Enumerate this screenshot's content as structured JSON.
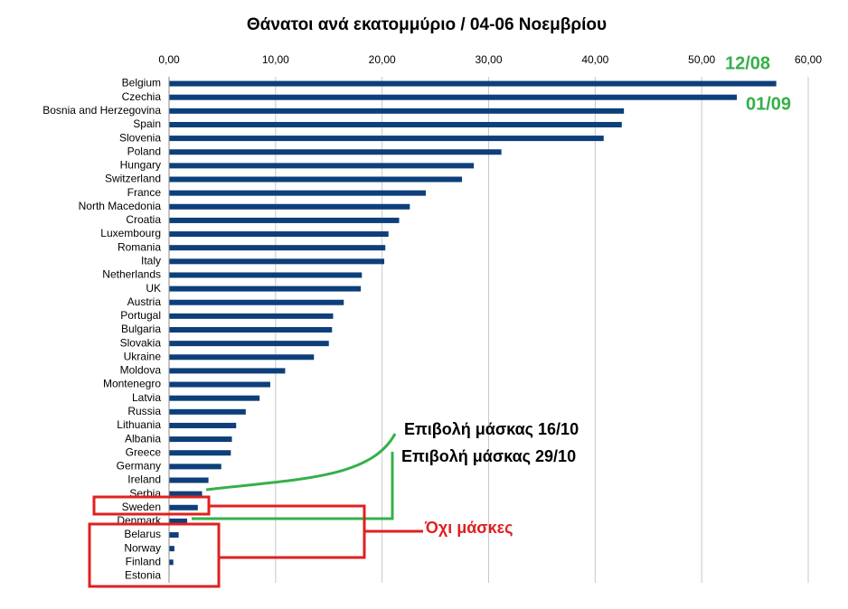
{
  "chart_data": {
    "type": "barh",
    "title": "Θάνατοι ανά εκατομμύριο / 04-06 Νοεμβρίου",
    "categories": [
      "Belgium",
      "Czechia",
      "Bosnia and Herzegovina",
      "Spain",
      "Slovenia",
      "Poland",
      "Hungary",
      "Switzerland",
      "France",
      "North Macedonia",
      "Croatia",
      "Luxembourg",
      "Romania",
      "Italy",
      "Netherlands",
      "UK",
      "Austria",
      "Portugal",
      "Bulgaria",
      "Slovakia",
      "Ukraine",
      "Moldova",
      "Montenegro",
      "Latvia",
      "Russia",
      "Lithuania",
      "Albania",
      "Greece",
      "Germany",
      "Ireland",
      "Serbia",
      "Sweden",
      "Denmark",
      "Belarus",
      "Norway",
      "Finland",
      "Estonia"
    ],
    "values": [
      57.0,
      53.3,
      42.7,
      42.5,
      40.8,
      31.2,
      28.6,
      27.5,
      24.1,
      22.6,
      21.6,
      20.6,
      20.3,
      20.2,
      18.1,
      18.0,
      16.4,
      15.4,
      15.3,
      15.0,
      13.6,
      10.9,
      9.5,
      8.5,
      7.2,
      6.3,
      5.9,
      5.8,
      4.9,
      3.7,
      3.1,
      2.7,
      1.7,
      0.9,
      0.5,
      0.4,
      0
    ],
    "color": "#0d3f7a",
    "xlim": [
      0,
      60
    ],
    "xticks": [
      {
        "value": 0,
        "label": "0,00"
      },
      {
        "value": 10,
        "label": "10,00"
      },
      {
        "value": 20,
        "label": "20,00"
      },
      {
        "value": 30,
        "label": "30,00"
      },
      {
        "value": 40,
        "label": "40,00"
      },
      {
        "value": 50,
        "label": "50,00"
      },
      {
        "value": 60,
        "label": "60,00"
      }
    ],
    "grid": true,
    "annotations": [
      "12/08",
      "01/09",
      "Επιβολή μάσκας 16/10",
      "Επιβολή μάσκας 29/10",
      "Όχι μάσκες"
    ]
  }
}
